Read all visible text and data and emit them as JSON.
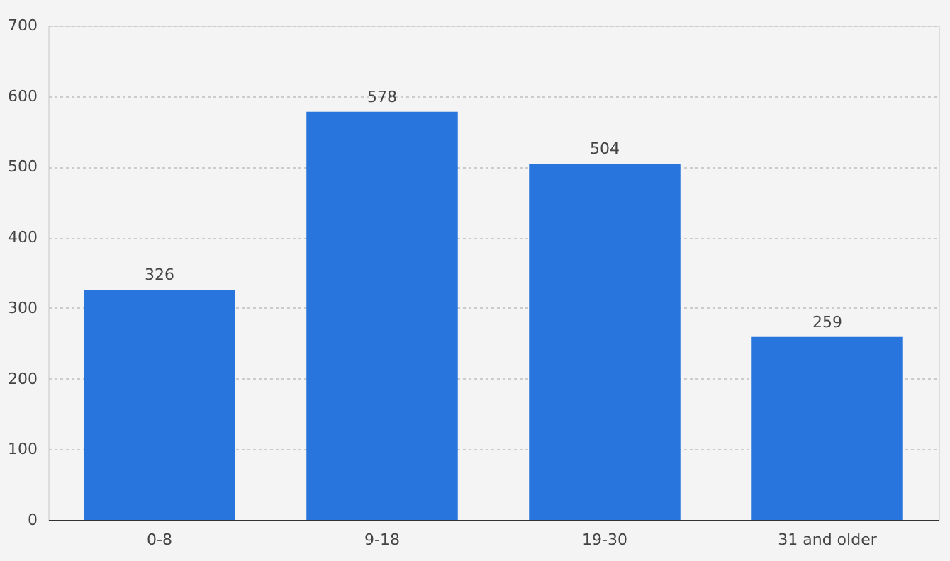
{
  "chart_data": {
    "type": "bar",
    "categories": [
      "0-8",
      "9-18",
      "19-30",
      "31 and older"
    ],
    "values": [
      326,
      578,
      504,
      259
    ],
    "color": "#2876dd",
    "ylim": [
      0,
      700
    ],
    "yticks": [
      0,
      100,
      200,
      300,
      400,
      500,
      600,
      700
    ],
    "grid": "y",
    "data_labels": true
  }
}
